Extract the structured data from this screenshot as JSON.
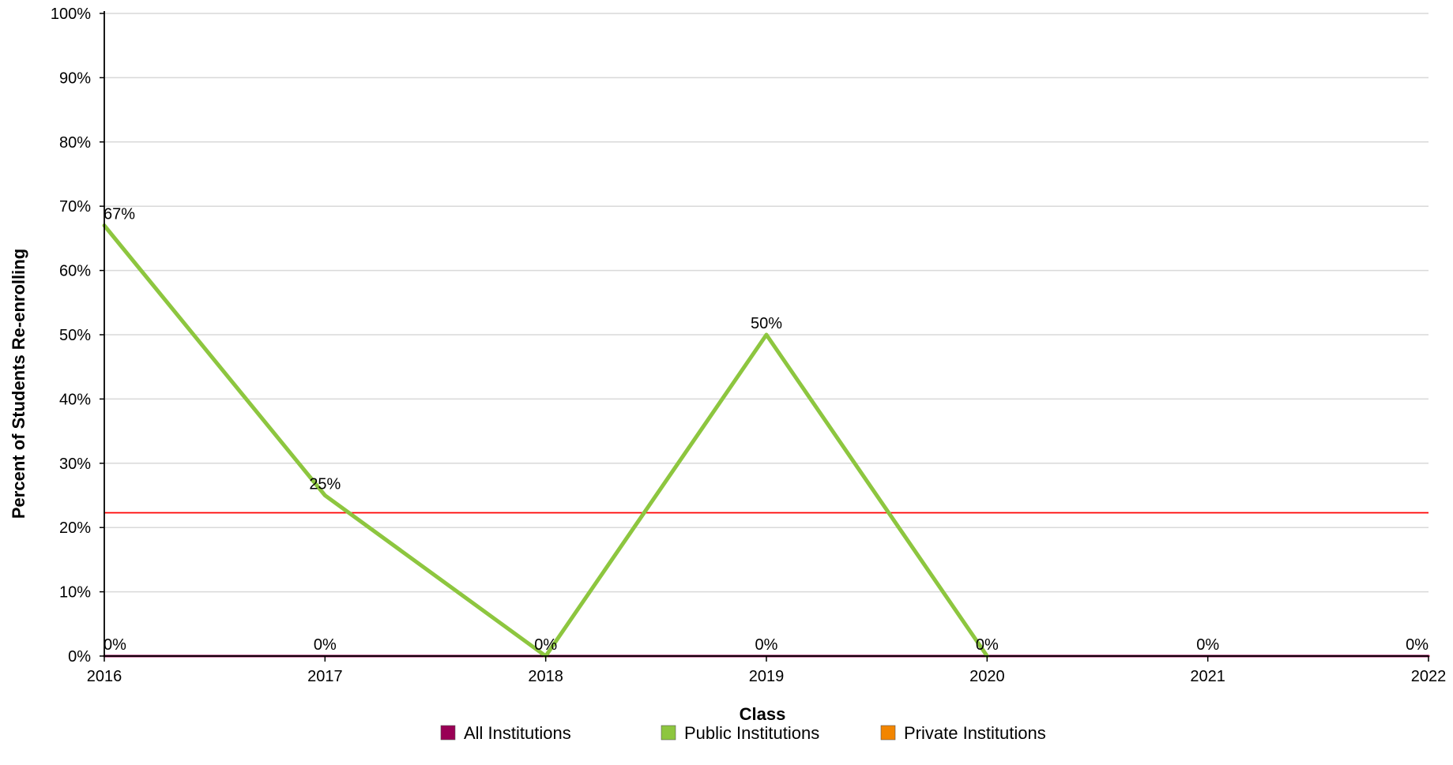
{
  "chart_data": {
    "type": "line",
    "xlabel": "Class",
    "ylabel": "Percent of Students Re-enrolling",
    "x": [
      "2016",
      "2017",
      "2018",
      "2019",
      "2020",
      "2021",
      "2022"
    ],
    "ylim": [
      0,
      100
    ],
    "yticks": [
      0,
      10,
      20,
      30,
      40,
      50,
      60,
      70,
      80,
      90,
      100
    ],
    "ytick_labels": [
      "0%",
      "10%",
      "20%",
      "30%",
      "40%",
      "50%",
      "60%",
      "70%",
      "80%",
      "90%",
      "100%"
    ],
    "grid": true,
    "legend_position": "bottom-center",
    "series": [
      {
        "name": "All Institutions",
        "color": "#990055",
        "values": [
          0,
          0,
          0,
          0,
          0,
          0,
          0
        ],
        "labels": []
      },
      {
        "name": "Public Institutions",
        "color": "#8dc63f",
        "values": [
          67,
          25,
          0,
          50,
          0,
          null,
          null
        ],
        "labels": [
          "67%",
          "25%",
          "0%",
          "50%",
          "0%",
          "",
          ""
        ]
      },
      {
        "name": "Private Institutions",
        "color": "#f28500",
        "values": [
          0,
          0,
          0,
          0,
          0,
          0,
          0
        ],
        "labels": [
          "0%",
          "0%",
          "",
          "0%",
          "",
          "0%",
          "0%"
        ]
      }
    ],
    "reference_line": {
      "value": 22.3,
      "color": "#ff0000"
    }
  }
}
